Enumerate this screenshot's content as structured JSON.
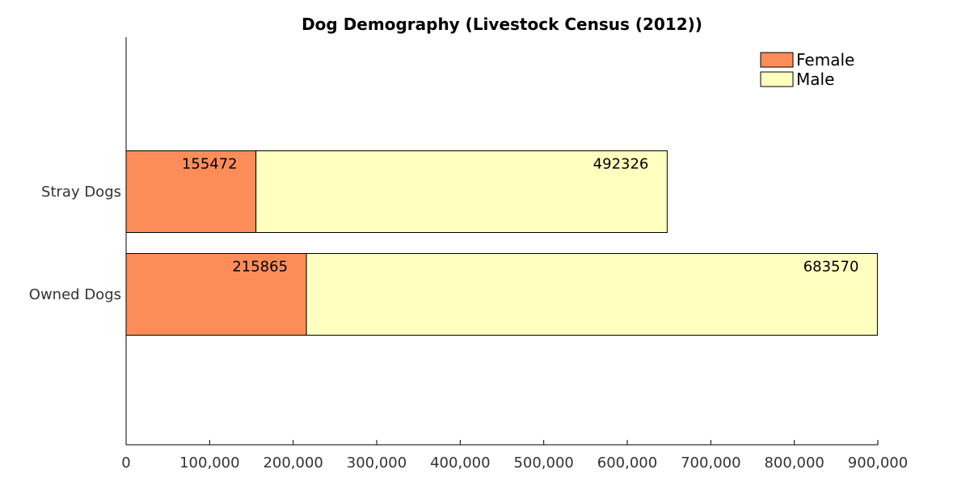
{
  "chart_data": {
    "type": "bar",
    "orientation": "horizontal",
    "stacked": true,
    "title": "Dog Demography (Livestock Census (2012))",
    "xlabel": "",
    "ylabel": "",
    "categories": [
      "Stray Dogs",
      "Owned Dogs"
    ],
    "series": [
      {
        "name": "Female",
        "color": "#fc8d59",
        "values": [
          155472,
          215865
        ],
        "labels": [
          "155472",
          "215865"
        ]
      },
      {
        "name": "Male",
        "color": "#ffffbf",
        "values": [
          492326,
          683570
        ],
        "labels": [
          "492326",
          "683570"
        ]
      }
    ],
    "xlim": [
      0,
      900000
    ],
    "xticks": [
      0,
      100000,
      200000,
      300000,
      400000,
      500000,
      600000,
      700000,
      800000,
      900000
    ],
    "xtick_labels": [
      "0",
      "100,000",
      "200,000",
      "300,000",
      "400,000",
      "500,000",
      "600,000",
      "700,000",
      "800,000",
      "900,000"
    ],
    "grid": false,
    "legend_position": "top-right"
  }
}
